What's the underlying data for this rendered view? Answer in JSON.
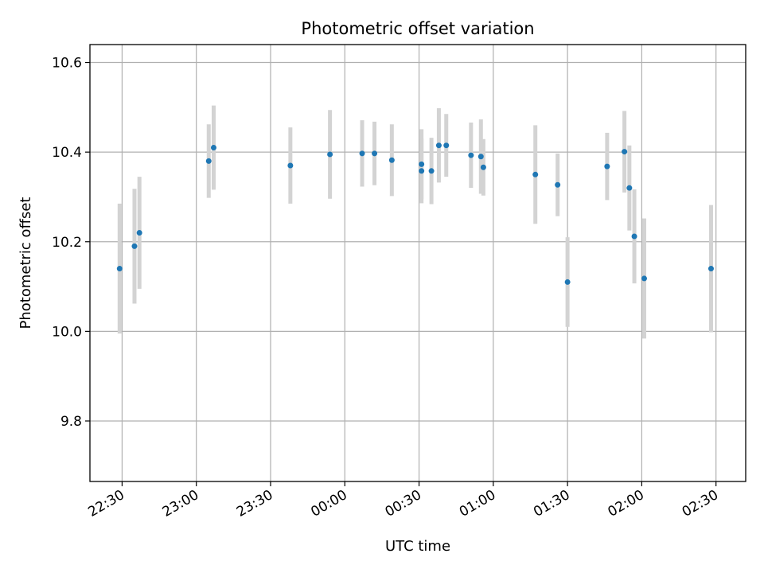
{
  "chart_data": {
    "type": "scatter",
    "title": "Photometric offset variation",
    "xlabel": "UTC time",
    "ylabel": "Photometric offset",
    "x_ticks": [
      "22:30",
      "23:00",
      "23:30",
      "00:00",
      "00:30",
      "01:00",
      "01:30",
      "02:00",
      "02:30"
    ],
    "y_ticks": [
      "9.8",
      "10.0",
      "10.2",
      "10.4",
      "10.6"
    ],
    "ylim": [
      9.665,
      10.64
    ],
    "xlim": [
      "22:17",
      "02:42"
    ],
    "grid": true,
    "colors": {
      "point": "#1f77b4",
      "errorbar": "#d3d3d3",
      "grid": "#b0b0b0"
    },
    "points": [
      {
        "x": "22:29",
        "y": 10.14,
        "err": 0.145
      },
      {
        "x": "22:35",
        "y": 10.19,
        "err": 0.128
      },
      {
        "x": "22:37",
        "y": 10.22,
        "err": 0.125
      },
      {
        "x": "23:05",
        "y": 10.38,
        "err": 0.082
      },
      {
        "x": "23:07",
        "y": 10.41,
        "err": 0.094
      },
      {
        "x": "23:38",
        "y": 10.37,
        "err": 0.085
      },
      {
        "x": "23:54",
        "y": 10.395,
        "err": 0.099
      },
      {
        "x": "00:07",
        "y": 10.397,
        "err": 0.074
      },
      {
        "x": "00:12",
        "y": 10.397,
        "err": 0.071
      },
      {
        "x": "00:19",
        "y": 10.382,
        "err": 0.08
      },
      {
        "x": "00:31",
        "y": 10.373,
        "err": 0.078
      },
      {
        "x": "00:31",
        "y": 10.358,
        "err": 0.072
      },
      {
        "x": "00:35",
        "y": 10.358,
        "err": 0.074
      },
      {
        "x": "00:38",
        "y": 10.415,
        "err": 0.083
      },
      {
        "x": "00:41",
        "y": 10.415,
        "err": 0.07
      },
      {
        "x": "00:51",
        "y": 10.393,
        "err": 0.073
      },
      {
        "x": "00:55",
        "y": 10.39,
        "err": 0.083
      },
      {
        "x": "00:56",
        "y": 10.366,
        "err": 0.063
      },
      {
        "x": "01:17",
        "y": 10.35,
        "err": 0.11
      },
      {
        "x": "01:26",
        "y": 10.327,
        "err": 0.07
      },
      {
        "x": "01:30",
        "y": 10.11,
        "err": 0.1
      },
      {
        "x": "01:46",
        "y": 10.368,
        "err": 0.075
      },
      {
        "x": "01:53",
        "y": 10.401,
        "err": 0.091
      },
      {
        "x": "01:55",
        "y": 10.32,
        "err": 0.095
      },
      {
        "x": "01:57",
        "y": 10.212,
        "err": 0.105
      },
      {
        "x": "02:01",
        "y": 10.118,
        "err": 0.134
      },
      {
        "x": "02:28",
        "y": 10.14,
        "err": 0.142
      }
    ]
  }
}
